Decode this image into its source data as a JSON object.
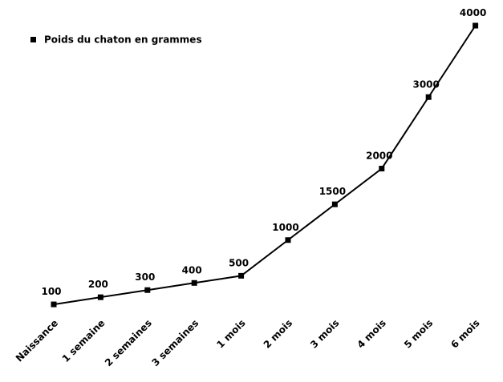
{
  "chart_data": {
    "type": "line",
    "categories": [
      "Naissance",
      "1 semaine",
      "2 semaines",
      "3 semaines",
      "1 mois",
      "2 mois",
      "3 mois",
      "4 mois",
      "5 mois",
      "6 mois"
    ],
    "series": [
      {
        "name": "Poids du chaton en grammes",
        "color": "#000000",
        "values": [
          100,
          200,
          300,
          400,
          500,
          1000,
          1500,
          2000,
          3000,
          4000
        ]
      }
    ],
    "ylim": [
      0,
      4000
    ],
    "legend": "top-left",
    "data_labels": true
  }
}
